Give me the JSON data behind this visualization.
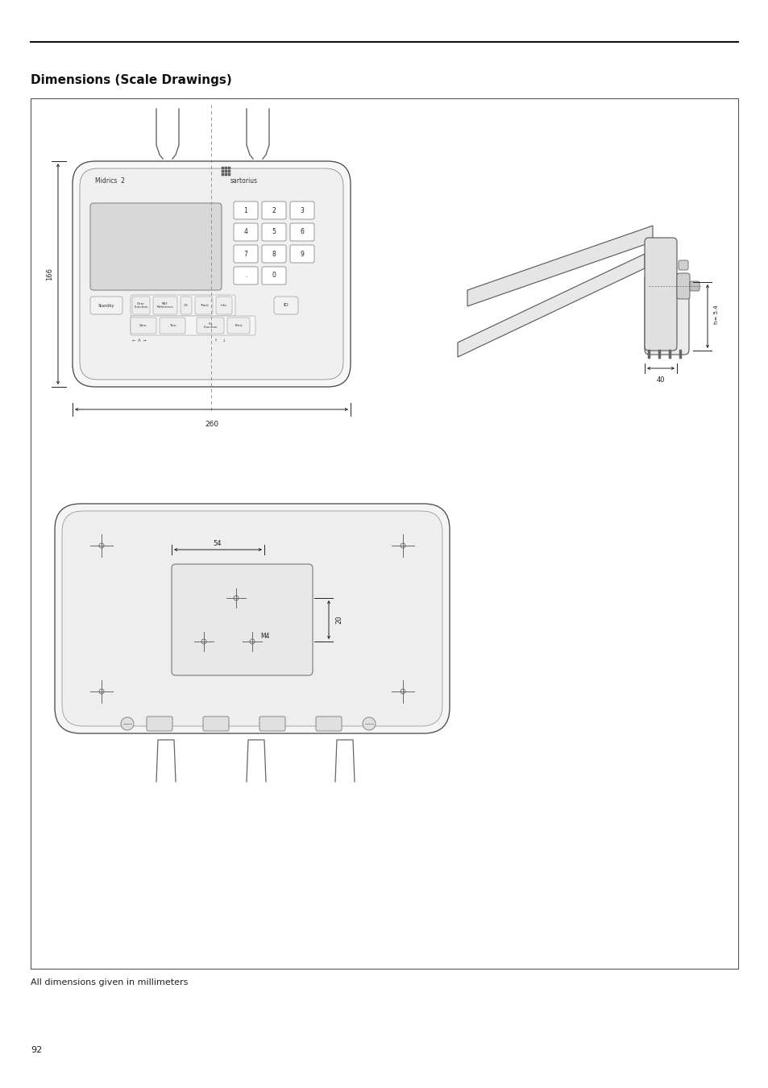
{
  "bg_color": "#ffffff",
  "title": "Dimensions (Scale Drawings)",
  "title_fontsize": 11,
  "subtitle": "All dimensions given in millimeters",
  "subtitle_fontsize": 8,
  "page_number": "92",
  "lc": "#222222",
  "dim_166": "166",
  "dim_260": "260",
  "dim_40": "40",
  "dim_54": "54",
  "dim_M4": "M4",
  "dim_20": "20",
  "dim_h55": "h= 5.4"
}
